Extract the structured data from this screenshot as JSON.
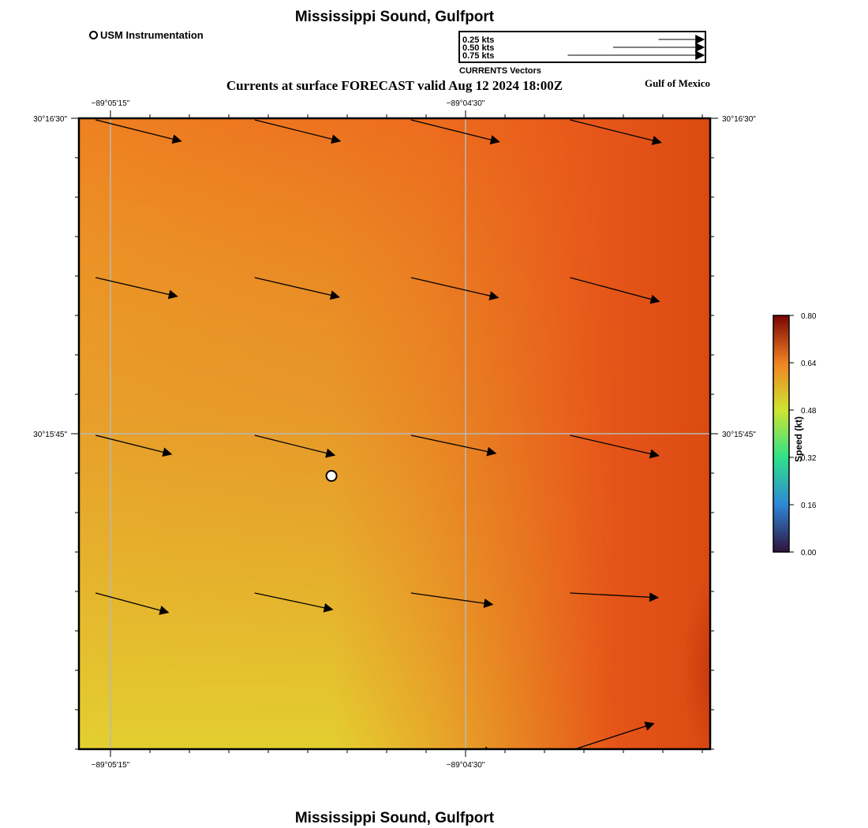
{
  "title": "Mississippi Sound, Gulfport",
  "subtitle": "Currents at surface FORECAST valid Aug 12 2024 18:00Z",
  "region_label": "Gulf of Mexico",
  "footer_title": "Mississippi Sound, Gulfport",
  "marker_legend": {
    "label": "USM Instrumentation",
    "icon": "hollow-circle-marker"
  },
  "vector_legend": {
    "caption": "CURRENTS Vectors",
    "entries": [
      {
        "label": "0.25 kts",
        "speed": 0.25
      },
      {
        "label": "0.50 kts",
        "speed": 0.5
      },
      {
        "label": "0.75 kts",
        "speed": 0.75
      }
    ]
  },
  "axes": {
    "lon_ticks": [
      {
        "label": "−89°05'15\"",
        "value": -89.0875
      },
      {
        "label": "−89°04'30\"",
        "value": -89.075
      }
    ],
    "lat_ticks": [
      {
        "label": "30°16'30\"",
        "value": 30.275
      },
      {
        "label": "30°15'45\"",
        "value": 30.2625
      }
    ],
    "lon_range": [
      -89.08861,
      -89.06639
    ],
    "lat_range": [
      30.25,
      30.275
    ]
  },
  "colorbar": {
    "label": "Speed (kt)",
    "min": 0.0,
    "max": 0.8,
    "ticks": [
      "0.00",
      "0.16",
      "0.32",
      "0.48",
      "0.64",
      "0.80"
    ],
    "stops": [
      {
        "value": 0.0,
        "color": "#30123b"
      },
      {
        "value": 0.16,
        "color": "#2e87d8"
      },
      {
        "value": 0.32,
        "color": "#2ee28a"
      },
      {
        "value": 0.48,
        "color": "#cfe530"
      },
      {
        "value": 0.64,
        "color": "#f08222"
      },
      {
        "value": 0.8,
        "color": "#7a0403"
      }
    ]
  },
  "station": {
    "name": "USM Instrumentation",
    "lon": -89.07972,
    "lat": 30.26083
  },
  "current_vectors": [
    {
      "lon": -89.0883,
      "lat": 30.275,
      "speed": 0.62,
      "dir_deg": 104
    },
    {
      "lon": -89.0827,
      "lat": 30.275,
      "speed": 0.62,
      "dir_deg": 104
    },
    {
      "lon": -89.0772,
      "lat": 30.275,
      "speed": 0.64,
      "dir_deg": 104
    },
    {
      "lon": -89.0716,
      "lat": 30.275,
      "speed": 0.66,
      "dir_deg": 104
    },
    {
      "lon": -89.0883,
      "lat": 30.26875,
      "speed": 0.59,
      "dir_deg": 103
    },
    {
      "lon": -89.0827,
      "lat": 30.26875,
      "speed": 0.61,
      "dir_deg": 103
    },
    {
      "lon": -89.0772,
      "lat": 30.26875,
      "speed": 0.63,
      "dir_deg": 103
    },
    {
      "lon": -89.0716,
      "lat": 30.26875,
      "speed": 0.65,
      "dir_deg": 105
    },
    {
      "lon": -89.0883,
      "lat": 30.2625,
      "speed": 0.55,
      "dir_deg": 104
    },
    {
      "lon": -89.0827,
      "lat": 30.2625,
      "speed": 0.58,
      "dir_deg": 104
    },
    {
      "lon": -89.0772,
      "lat": 30.2625,
      "speed": 0.61,
      "dir_deg": 102
    },
    {
      "lon": -89.0716,
      "lat": 30.2625,
      "speed": 0.64,
      "dir_deg": 103
    },
    {
      "lon": -89.0883,
      "lat": 30.25625,
      "speed": 0.53,
      "dir_deg": 105
    },
    {
      "lon": -89.0827,
      "lat": 30.25625,
      "speed": 0.56,
      "dir_deg": 102
    },
    {
      "lon": -89.0772,
      "lat": 30.25625,
      "speed": 0.58,
      "dir_deg": 98
    },
    {
      "lon": -89.0716,
      "lat": 30.25625,
      "speed": 0.62,
      "dir_deg": 93
    },
    {
      "lon": -89.0747,
      "lat": 30.25,
      "speed": 0.08,
      "dir_deg": 100
    },
    {
      "lon": -89.0716,
      "lat": 30.25,
      "speed": 0.62,
      "dir_deg": 72
    }
  ],
  "field_colors": {
    "bottom_left": "#e2cf31",
    "top_left": "#ef7a22",
    "right_edge": "#e04f14",
    "lower_right_edge": "#c83a0e"
  }
}
